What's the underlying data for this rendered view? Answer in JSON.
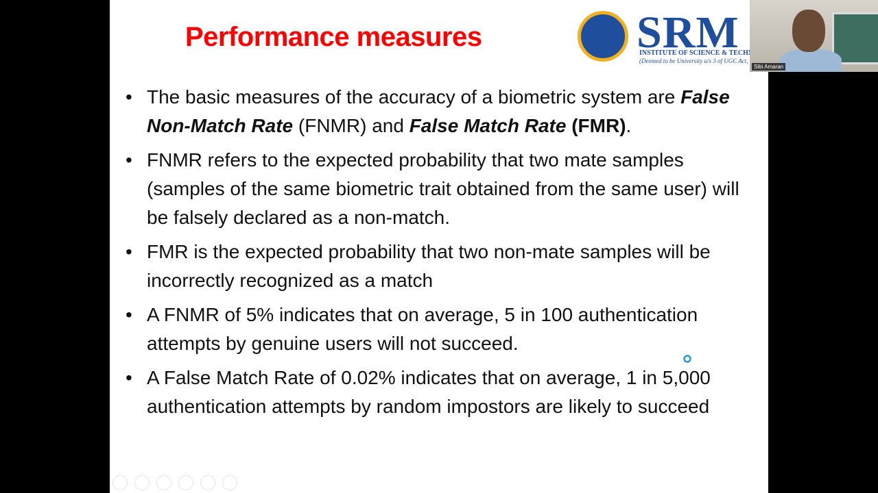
{
  "slide": {
    "title": "Performance measures",
    "logo": {
      "name": "SRM",
      "subtitle": "INSTITUTE OF SCIENCE & TECHNOLO",
      "note": "(Deemed to be University u/s 3 of UGC Act,"
    },
    "bullets": [
      [
        {
          "text": "The basic measures of the accuracy of a biometric system are ",
          "bold": false,
          "italic": false
        },
        {
          "text": "False Non-Match Rate",
          "bold": true,
          "italic": true
        },
        {
          "text": " (FNMR) and ",
          "bold": false,
          "italic": false
        },
        {
          "text": "False Match Rate",
          "bold": true,
          "italic": true
        },
        {
          "text": " ",
          "bold": false,
          "italic": false
        },
        {
          "text": "(FMR)",
          "bold": true,
          "italic": false
        },
        {
          "text": ".",
          "bold": false,
          "italic": false
        }
      ],
      [
        {
          "text": "FNMR refers to the expected probability that two mate samples (samples of the same biometric trait obtained from the same user) will be falsely declared as a non-match.",
          "bold": false,
          "italic": false
        }
      ],
      [
        {
          "text": "FMR is the expected probability that two non-mate samples will be incorrectly recognized as a match",
          "bold": false,
          "italic": false
        }
      ],
      [
        {
          "text": "A FNMR of 5% indicates that on average, 5 in 100 authentication attempts by genuine users will not succeed.",
          "bold": false,
          "italic": false
        }
      ],
      [
        {
          "text": "A False Match Rate of 0.02% indicates that on average, 1 in 5,000 authentication attempts by random impostors are likely to succeed",
          "bold": false,
          "italic": false
        }
      ]
    ]
  },
  "webcam": {
    "participant": "Sibi Amaran"
  }
}
